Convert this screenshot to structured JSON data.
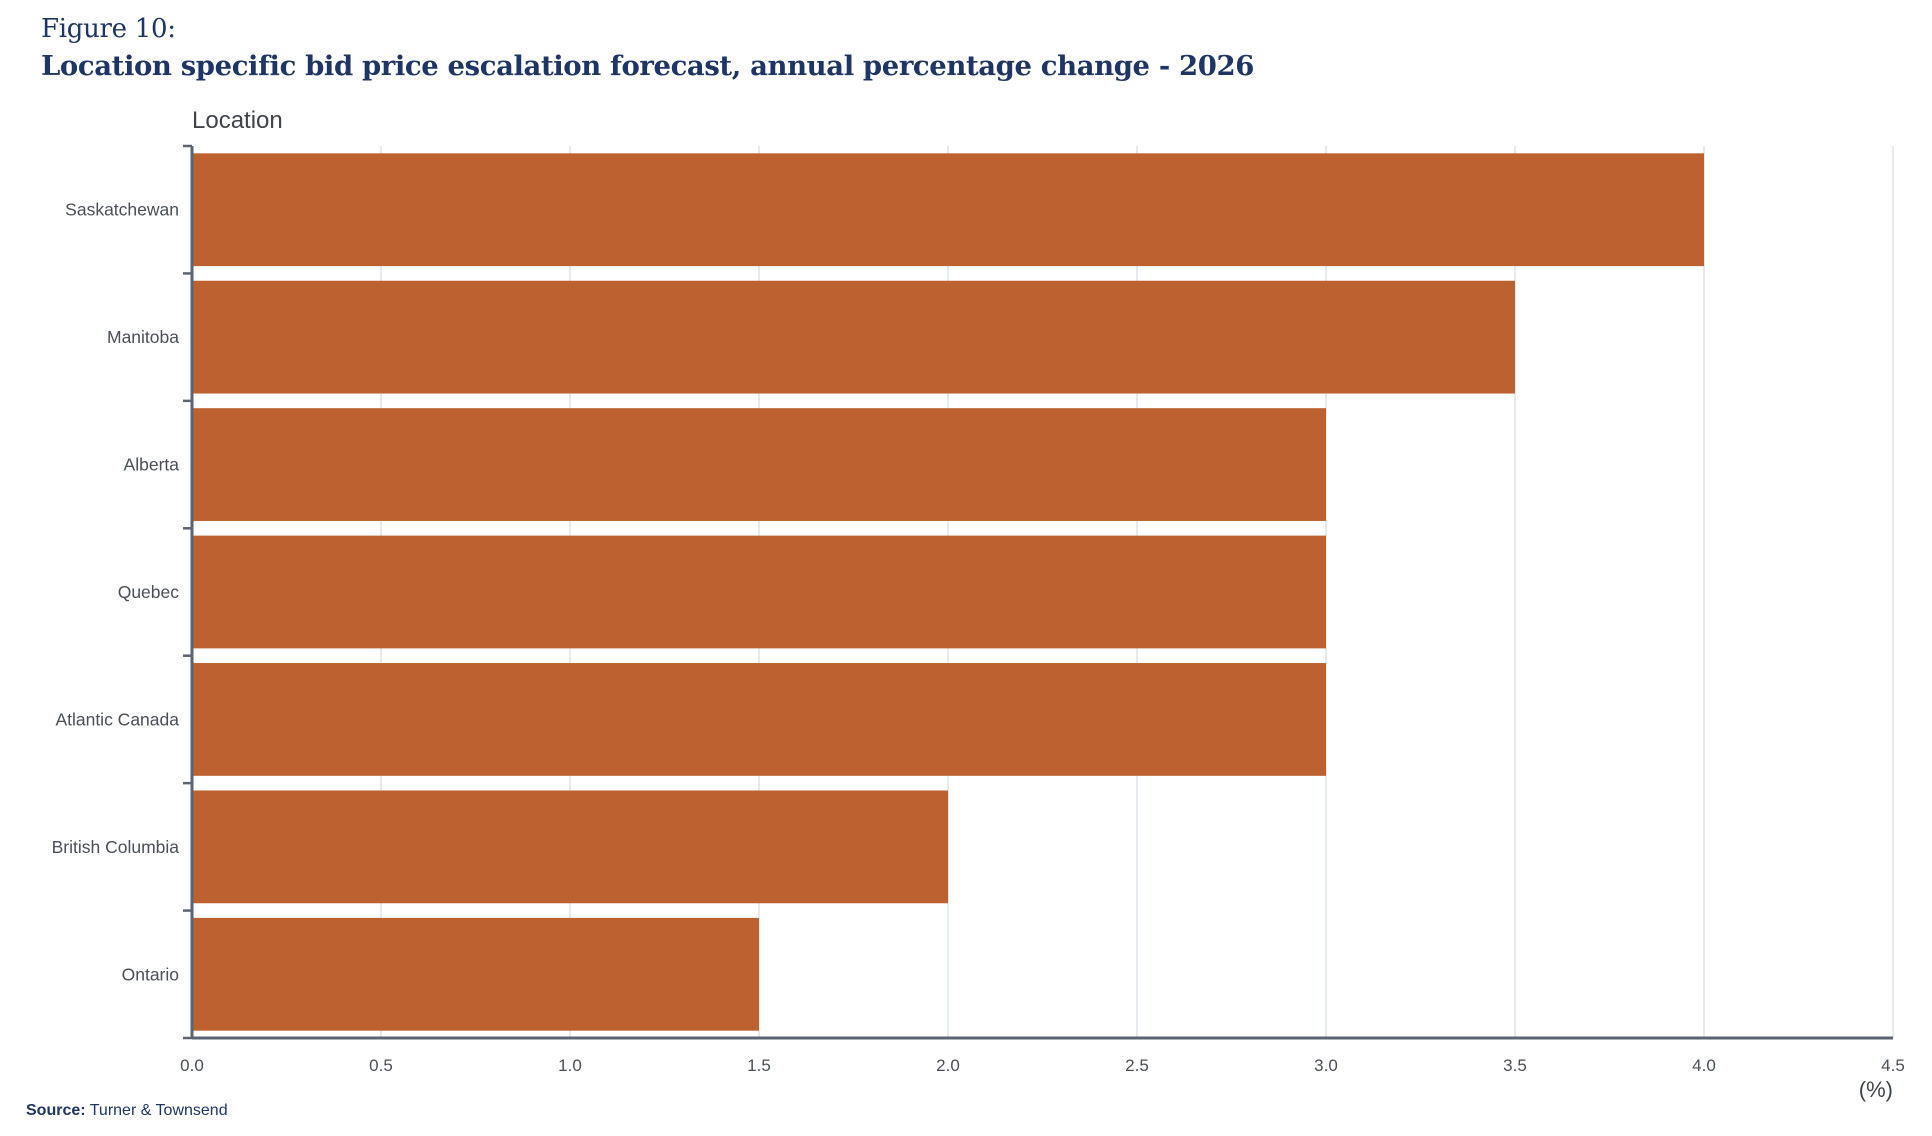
{
  "header": {
    "figure_label": "Figure 10:",
    "title": "Location specific bid price escalation forecast, annual percentage change - 2026"
  },
  "footer": {
    "source_label": "Source:",
    "source_text": "Turner & Townsend"
  },
  "colors": {
    "bar": "#bc6230",
    "title": "#1f3566",
    "axis": "#5a6472",
    "grid": "#e6e9ee",
    "tick_text": "#4a4f58"
  },
  "chart_data": {
    "type": "bar",
    "orientation": "horizontal",
    "title": "",
    "ylabel": "Location",
    "xlabel": "(%)",
    "categories": [
      "Saskatchewan",
      "Manitoba",
      "Alberta",
      "Quebec",
      "Atlantic Canada",
      "British Columbia",
      "Ontario"
    ],
    "values": [
      4.0,
      3.5,
      3.0,
      3.0,
      3.0,
      2.0,
      1.5
    ],
    "xlim": [
      0,
      4.5
    ],
    "xticks": [
      "0.0",
      "0.5",
      "1.0",
      "1.5",
      "2.0",
      "2.5",
      "3.0",
      "3.5",
      "4.0",
      "4.5"
    ],
    "grid": "vertical",
    "legend": "none"
  }
}
